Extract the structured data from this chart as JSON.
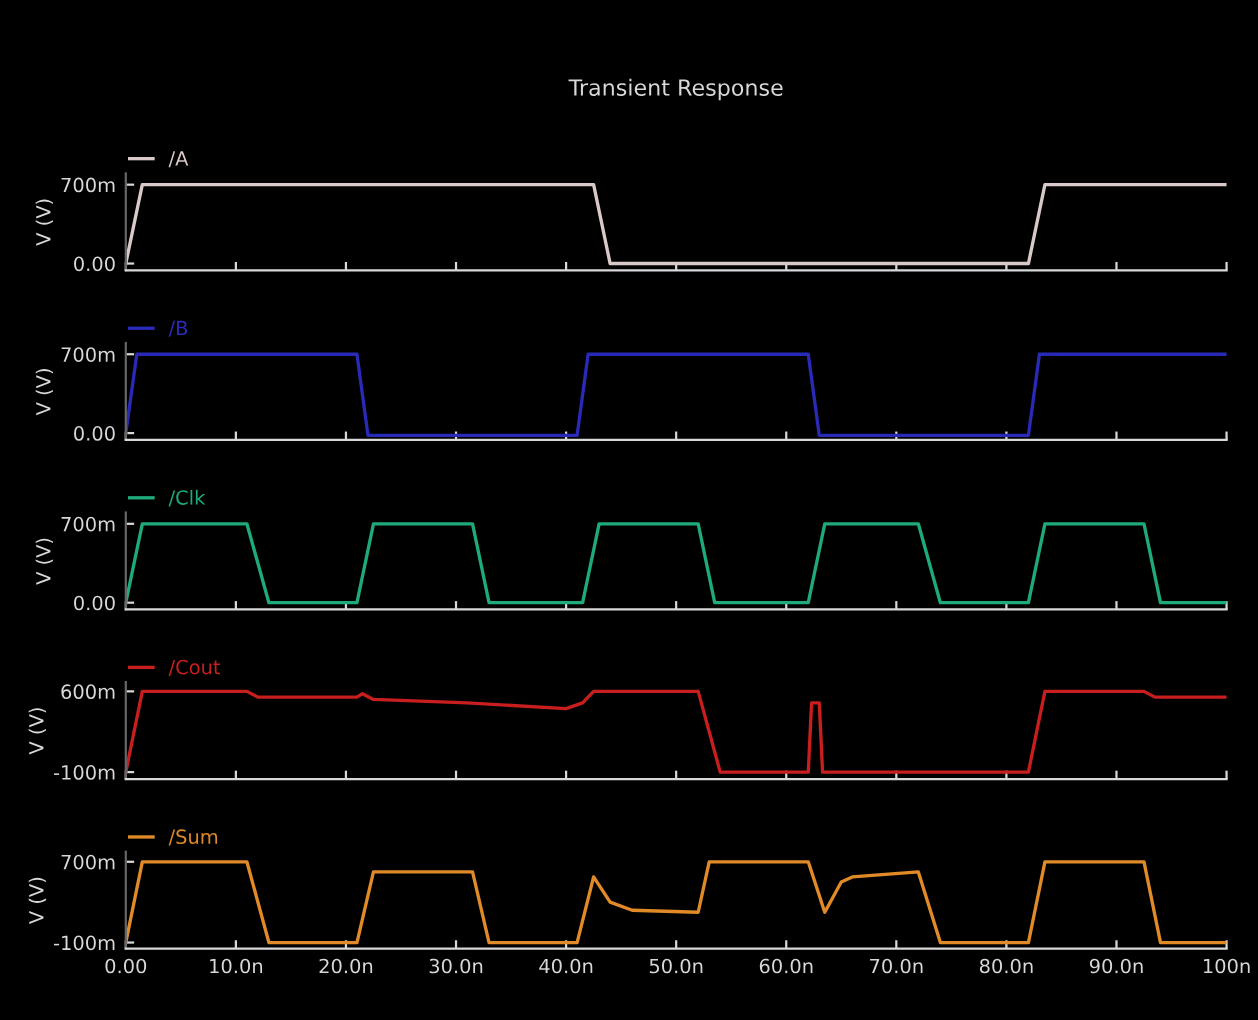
{
  "chart_data": [
    {
      "type": "line",
      "title": "Transient Response",
      "ylabel": "V (V)",
      "legend": "top left",
      "tick_labels": "y",
      "xlim": [
        0,
        100
      ],
      "xticks": [
        0,
        10,
        20,
        30,
        40,
        50,
        60,
        70,
        80,
        90,
        100
      ],
      "ylim": [
        -60,
        800
      ],
      "yticks": [
        {
          "value": 0,
          "label": "0.00"
        },
        {
          "value": 700,
          "label": "700m"
        }
      ],
      "series": [
        {
          "name": "/A",
          "color": "#d9c9c9",
          "x": [
            0,
            1.5,
            42.5,
            44,
            82,
            83.5,
            100
          ],
          "values": [
            0,
            700,
            700,
            0,
            0,
            700,
            700
          ]
        }
      ]
    },
    {
      "type": "line",
      "ylabel": "V (V)",
      "legend": "top left",
      "tick_labels": "y",
      "xlim": [
        0,
        100
      ],
      "xticks": [
        0,
        10,
        20,
        30,
        40,
        50,
        60,
        70,
        80,
        90,
        100
      ],
      "ylim": [
        -60,
        800
      ],
      "yticks": [
        {
          "value": 0,
          "label": "0.00"
        },
        {
          "value": 700,
          "label": "700m"
        }
      ],
      "series": [
        {
          "name": "/B",
          "color": "#2a2ab8",
          "x": [
            0,
            1,
            21,
            22,
            41,
            42,
            62,
            63,
            82,
            83,
            100
          ],
          "values": [
            0,
            700,
            700,
            -20,
            -20,
            700,
            700,
            -20,
            -20,
            700,
            700
          ]
        }
      ]
    },
    {
      "type": "line",
      "ylabel": "V (V)",
      "legend": "top left",
      "tick_labels": "y",
      "xlim": [
        0,
        100
      ],
      "xticks": [
        0,
        10,
        20,
        30,
        40,
        50,
        60,
        70,
        80,
        90,
        100
      ],
      "ylim": [
        -60,
        800
      ],
      "yticks": [
        {
          "value": 0,
          "label": "0.00"
        },
        {
          "value": 700,
          "label": "700m"
        }
      ],
      "series": [
        {
          "name": "/Clk",
          "color": "#1faa7a",
          "x": [
            0,
            1.5,
            11,
            13,
            21,
            22.5,
            31.5,
            33,
            41.5,
            43,
            52,
            53.5,
            62,
            63.5,
            72,
            74,
            82,
            83.5,
            92.5,
            94,
            100
          ],
          "values": [
            0,
            700,
            700,
            0,
            0,
            700,
            700,
            0,
            0,
            700,
            700,
            0,
            0,
            700,
            700,
            0,
            0,
            700,
            700,
            0,
            0
          ]
        }
      ]
    },
    {
      "type": "line",
      "ylabel": "V (V)",
      "legend": "top left",
      "tick_labels": "y",
      "xlim": [
        0,
        100
      ],
      "xticks": [
        0,
        10,
        20,
        30,
        40,
        50,
        60,
        70,
        80,
        90,
        100
      ],
      "ylim": [
        -160,
        680
      ],
      "yticks": [
        {
          "value": -100,
          "label": "-100m"
        },
        {
          "value": 600,
          "label": "600m"
        }
      ],
      "series": [
        {
          "name": "/Cout",
          "color": "#c81e1e",
          "x": [
            0,
            1.5,
            11,
            12,
            21,
            21.5,
            22.5,
            31,
            40,
            41.5,
            42.5,
            52,
            54,
            62,
            62.3,
            63,
            63.3,
            82,
            83.5,
            92.5,
            93.5,
            100
          ],
          "values": [
            -100,
            600,
            600,
            550,
            550,
            580,
            530,
            500,
            450,
            500,
            600,
            600,
            -100,
            -100,
            500,
            500,
            -100,
            -100,
            600,
            600,
            550,
            550
          ]
        }
      ]
    },
    {
      "type": "line",
      "ylabel": "V (V)",
      "legend": "top left",
      "xlim": [
        0,
        100
      ],
      "xticks": [
        {
          "value": 0,
          "label": "0.00"
        },
        {
          "value": 10,
          "label": "10.0n"
        },
        {
          "value": 20,
          "label": "20.0n"
        },
        {
          "value": 30,
          "label": "30.0n"
        },
        {
          "value": 40,
          "label": "40.0n"
        },
        {
          "value": 50,
          "label": "50.0n"
        },
        {
          "value": 60,
          "label": "60.0n"
        },
        {
          "value": 70,
          "label": "70.0n"
        },
        {
          "value": 80,
          "label": "80.0n"
        },
        {
          "value": 90,
          "label": "90.0n"
        },
        {
          "value": 100,
          "label": "100n"
        }
      ],
      "ylim": [
        -160,
        800
      ],
      "yticks": [
        {
          "value": -100,
          "label": "-100m"
        },
        {
          "value": 700,
          "label": "700m"
        }
      ],
      "series": [
        {
          "name": "/Sum",
          "color": "#e08a28",
          "x": [
            0,
            1.5,
            11,
            13,
            21,
            22.5,
            31.5,
            33,
            41,
            42.5,
            44,
            46,
            52,
            53,
            62,
            63.5,
            65,
            66,
            72,
            74,
            82,
            83.5,
            92.5,
            94,
            100
          ],
          "values": [
            -100,
            700,
            700,
            -100,
            -100,
            600,
            600,
            -100,
            -100,
            550,
            300,
            220,
            200,
            700,
            700,
            200,
            500,
            550,
            600,
            -100,
            -100,
            700,
            700,
            -100,
            -100
          ]
        }
      ]
    }
  ]
}
